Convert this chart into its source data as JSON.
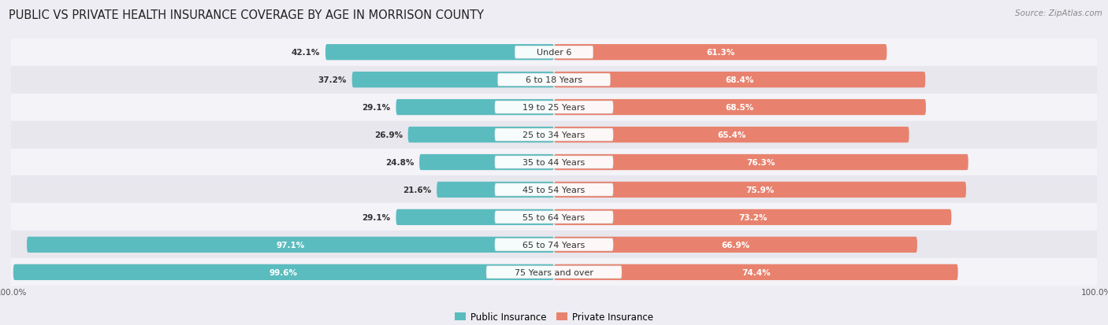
{
  "title": "PUBLIC VS PRIVATE HEALTH INSURANCE COVERAGE BY AGE IN MORRISON COUNTY",
  "source": "Source: ZipAtlas.com",
  "categories": [
    "Under 6",
    "6 to 18 Years",
    "19 to 25 Years",
    "25 to 34 Years",
    "35 to 44 Years",
    "45 to 54 Years",
    "55 to 64 Years",
    "65 to 74 Years",
    "75 Years and over"
  ],
  "public_values": [
    42.1,
    37.2,
    29.1,
    26.9,
    24.8,
    21.6,
    29.1,
    97.1,
    99.6
  ],
  "private_values": [
    61.3,
    68.4,
    68.5,
    65.4,
    76.3,
    75.9,
    73.2,
    66.9,
    74.4
  ],
  "public_color": "#5bbcbf",
  "private_color": "#e8826e",
  "background_color": "#eeedf3",
  "row_bg_even": "#f4f3f8",
  "row_bg_odd": "#e8e7ee",
  "title_fontsize": 10.5,
  "source_fontsize": 7.5,
  "label_fontsize": 8,
  "value_fontsize": 7.5,
  "legend_fontsize": 8.5,
  "max_value": 100.0,
  "tick_label_fontsize": 7.5
}
